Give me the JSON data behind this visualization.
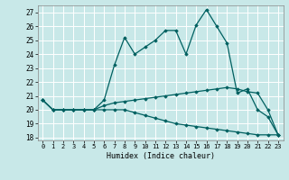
{
  "x": [
    0,
    1,
    2,
    3,
    4,
    5,
    6,
    7,
    8,
    9,
    10,
    11,
    12,
    13,
    14,
    15,
    16,
    17,
    18,
    19,
    20,
    21,
    22,
    23
  ],
  "y_main": [
    20.7,
    20.0,
    20.0,
    20.0,
    20.0,
    20.0,
    20.7,
    23.2,
    25.2,
    24.0,
    24.5,
    25.0,
    25.7,
    25.7,
    24.0,
    26.1,
    27.2,
    26.0,
    24.8,
    21.2,
    21.5,
    20.0,
    19.5,
    18.2
  ],
  "y_upper": [
    20.7,
    20.0,
    20.0,
    20.0,
    20.0,
    20.0,
    20.3,
    20.5,
    20.6,
    20.7,
    20.8,
    20.9,
    21.0,
    21.1,
    21.2,
    21.3,
    21.4,
    21.5,
    21.6,
    21.5,
    21.3,
    21.2,
    20.0,
    18.2
  ],
  "y_lower": [
    20.7,
    20.0,
    20.0,
    20.0,
    20.0,
    20.0,
    20.0,
    20.0,
    20.0,
    19.8,
    19.6,
    19.4,
    19.2,
    19.0,
    18.9,
    18.8,
    18.7,
    18.6,
    18.5,
    18.4,
    18.3,
    18.2,
    18.2,
    18.2
  ],
  "color": "#006060",
  "bg_color": "#c8e8e8",
  "grid_color": "#ffffff",
  "ylim": [
    17.8,
    27.5
  ],
  "yticks": [
    18,
    19,
    20,
    21,
    22,
    23,
    24,
    25,
    26,
    27
  ],
  "xlim": [
    -0.5,
    23.5
  ],
  "xlabel": "Humidex (Indice chaleur)",
  "marker": "D",
  "markersize": 1.8,
  "linewidth": 0.9
}
